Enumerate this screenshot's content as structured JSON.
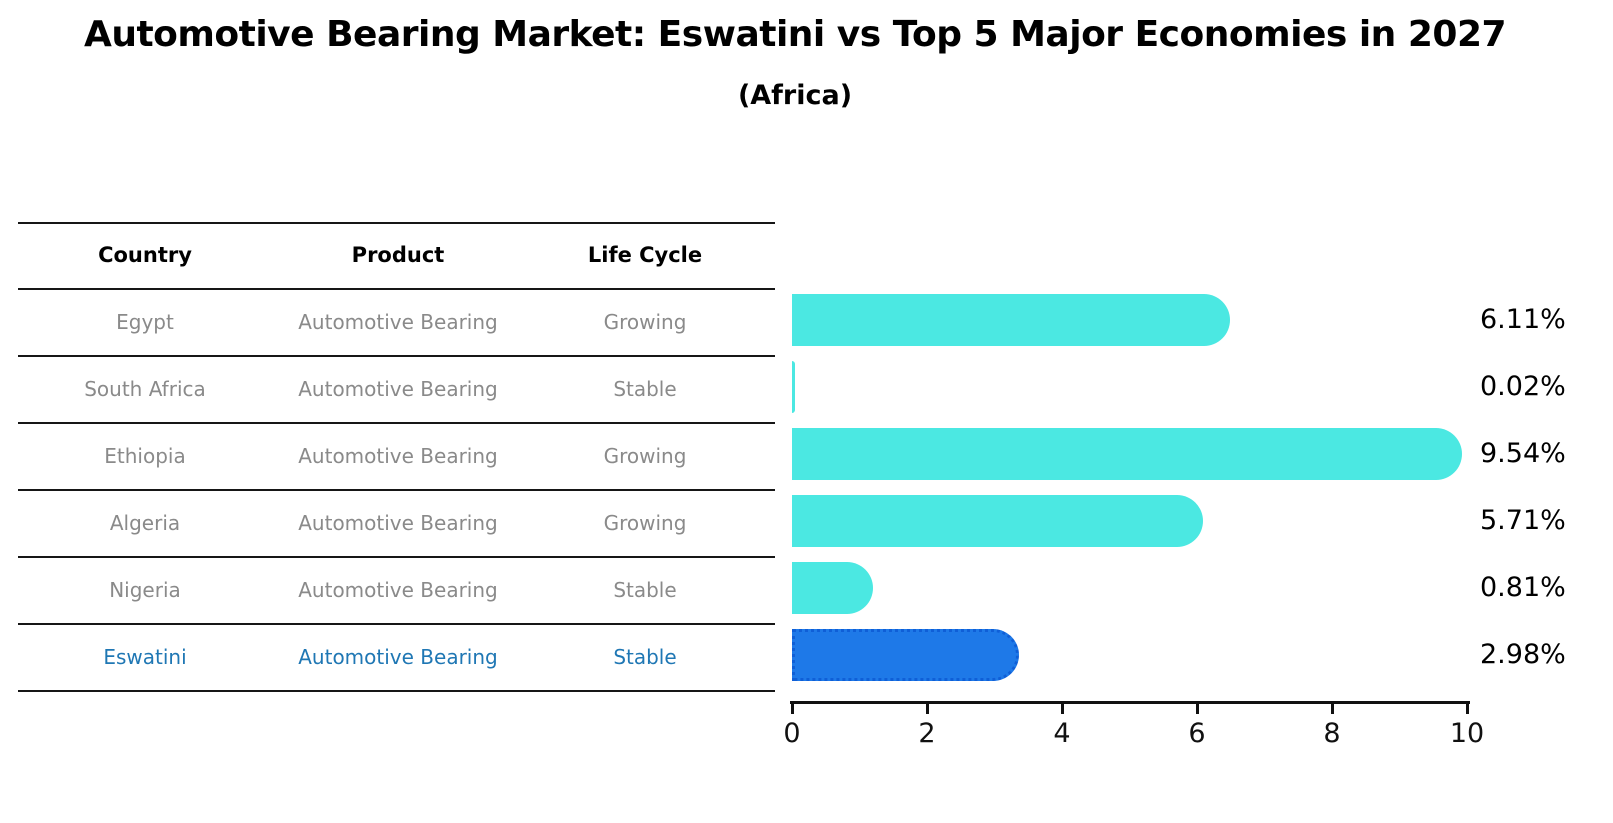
{
  "title": "Automotive Bearing Market: Eswatini vs Top 5 Major Economies in 2027",
  "subtitle": "(Africa)",
  "table": {
    "headers": {
      "country": "Country",
      "product": "Product",
      "life_cycle": "Life Cycle"
    },
    "rows": [
      {
        "country": "Egypt",
        "product": "Automotive Bearing",
        "life_cycle": "Growing",
        "highlight": false
      },
      {
        "country": "South Africa",
        "product": "Automotive Bearing",
        "life_cycle": "Stable",
        "highlight": false
      },
      {
        "country": "Ethiopia",
        "product": "Automotive Bearing",
        "life_cycle": "Growing",
        "highlight": false
      },
      {
        "country": "Algeria",
        "product": "Automotive Bearing",
        "life_cycle": "Growing",
        "highlight": false
      },
      {
        "country": "Nigeria",
        "product": "Automotive Bearing",
        "life_cycle": "Stable",
        "highlight": false
      },
      {
        "country": "Eswatini",
        "product": "Automotive Bearing",
        "life_cycle": "Stable",
        "highlight": true
      }
    ]
  },
  "chart_data": {
    "type": "bar",
    "orientation": "horizontal",
    "title": "Automotive Bearing Market: Eswatini vs Top 5 Major Economies in 2027",
    "subtitle": "(Africa)",
    "categories": [
      "Egypt",
      "South Africa",
      "Ethiopia",
      "Algeria",
      "Nigeria",
      "Eswatini"
    ],
    "values": [
      6.11,
      0.02,
      9.54,
      5.71,
      0.81,
      2.98
    ],
    "value_labels": [
      "6.11%",
      "0.02%",
      "9.54%",
      "5.71%",
      "0.81%",
      "2.98%"
    ],
    "xlim": [
      0,
      10
    ],
    "x_ticks": [
      0,
      2,
      4,
      6,
      8,
      10
    ],
    "grid": false,
    "legend": "none",
    "bar_color": "#4BE8E2",
    "highlight_bar_color": "#1E79E8",
    "highlight_bar_edge_color": "#0f5fd7",
    "highlight_index": 5,
    "highlight_text_color": "#1F77B4",
    "table_text_color": "#8a8a8a",
    "axis_color": "#111111"
  }
}
